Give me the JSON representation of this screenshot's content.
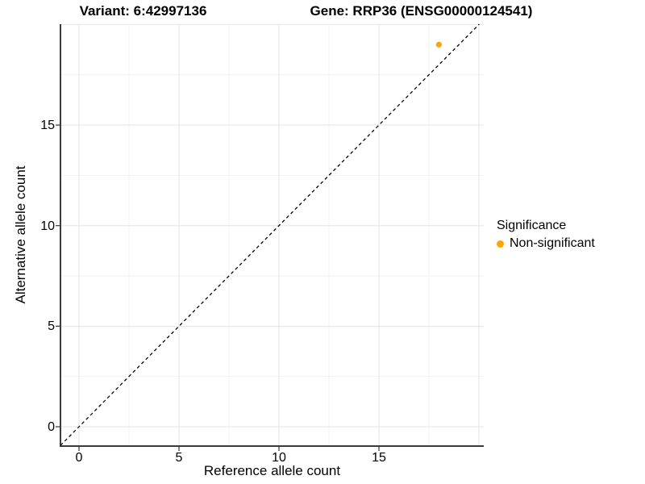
{
  "titles": {
    "variant": "Variant: 6:42997136",
    "gene": "Gene: RRP36 (ENSG00000124541)"
  },
  "chart_data": {
    "type": "scatter",
    "xlabel": "Reference allele count",
    "ylabel": "Alternative allele count",
    "x_ticks": [
      0,
      5,
      10,
      15
    ],
    "y_ticks": [
      0,
      5,
      10,
      15
    ],
    "grid_major": [
      0,
      5,
      10,
      15,
      20
    ],
    "grid_minor": [
      2.5,
      7.5,
      12.5,
      17.5
    ],
    "xlim": [
      -0.93,
      20.24
    ],
    "ylim": [
      -0.96,
      20.02
    ],
    "diagonal_line": {
      "type": "identity",
      "style": "dashed",
      "color": "#000000"
    },
    "series": [
      {
        "name": "Non-significant",
        "color": "#FFA500",
        "points": [
          {
            "x": 18,
            "y": 19
          }
        ]
      }
    ],
    "legend": {
      "title": "Significance",
      "position": "right",
      "entries": [
        {
          "label": "Non-significant",
          "color": "#FFA500"
        }
      ]
    }
  }
}
